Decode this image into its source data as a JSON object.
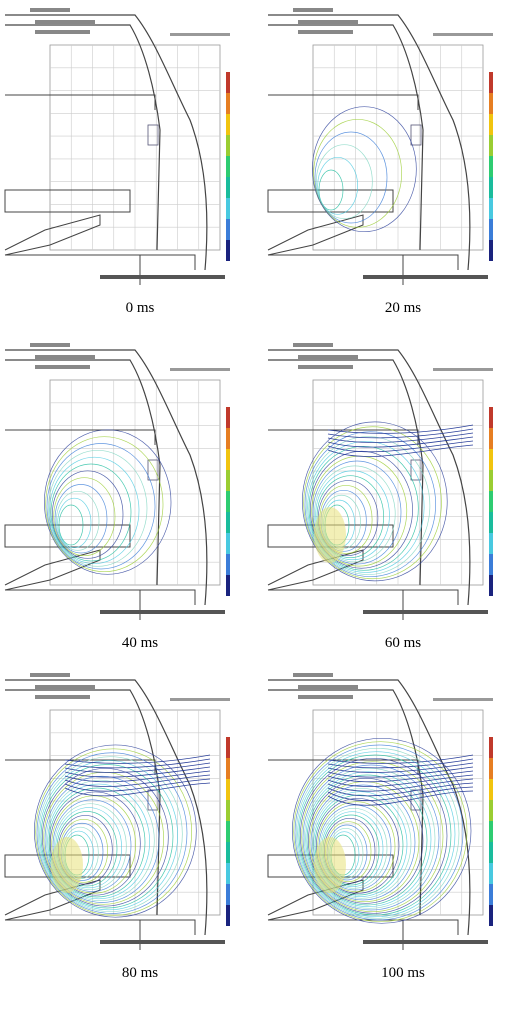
{
  "panels": [
    {
      "caption": "0 ms"
    },
    {
      "caption": "20 ms"
    },
    {
      "caption": "40 ms"
    },
    {
      "caption": "60 ms"
    },
    {
      "caption": "80 ms"
    },
    {
      "caption": "100 ms"
    }
  ]
}
